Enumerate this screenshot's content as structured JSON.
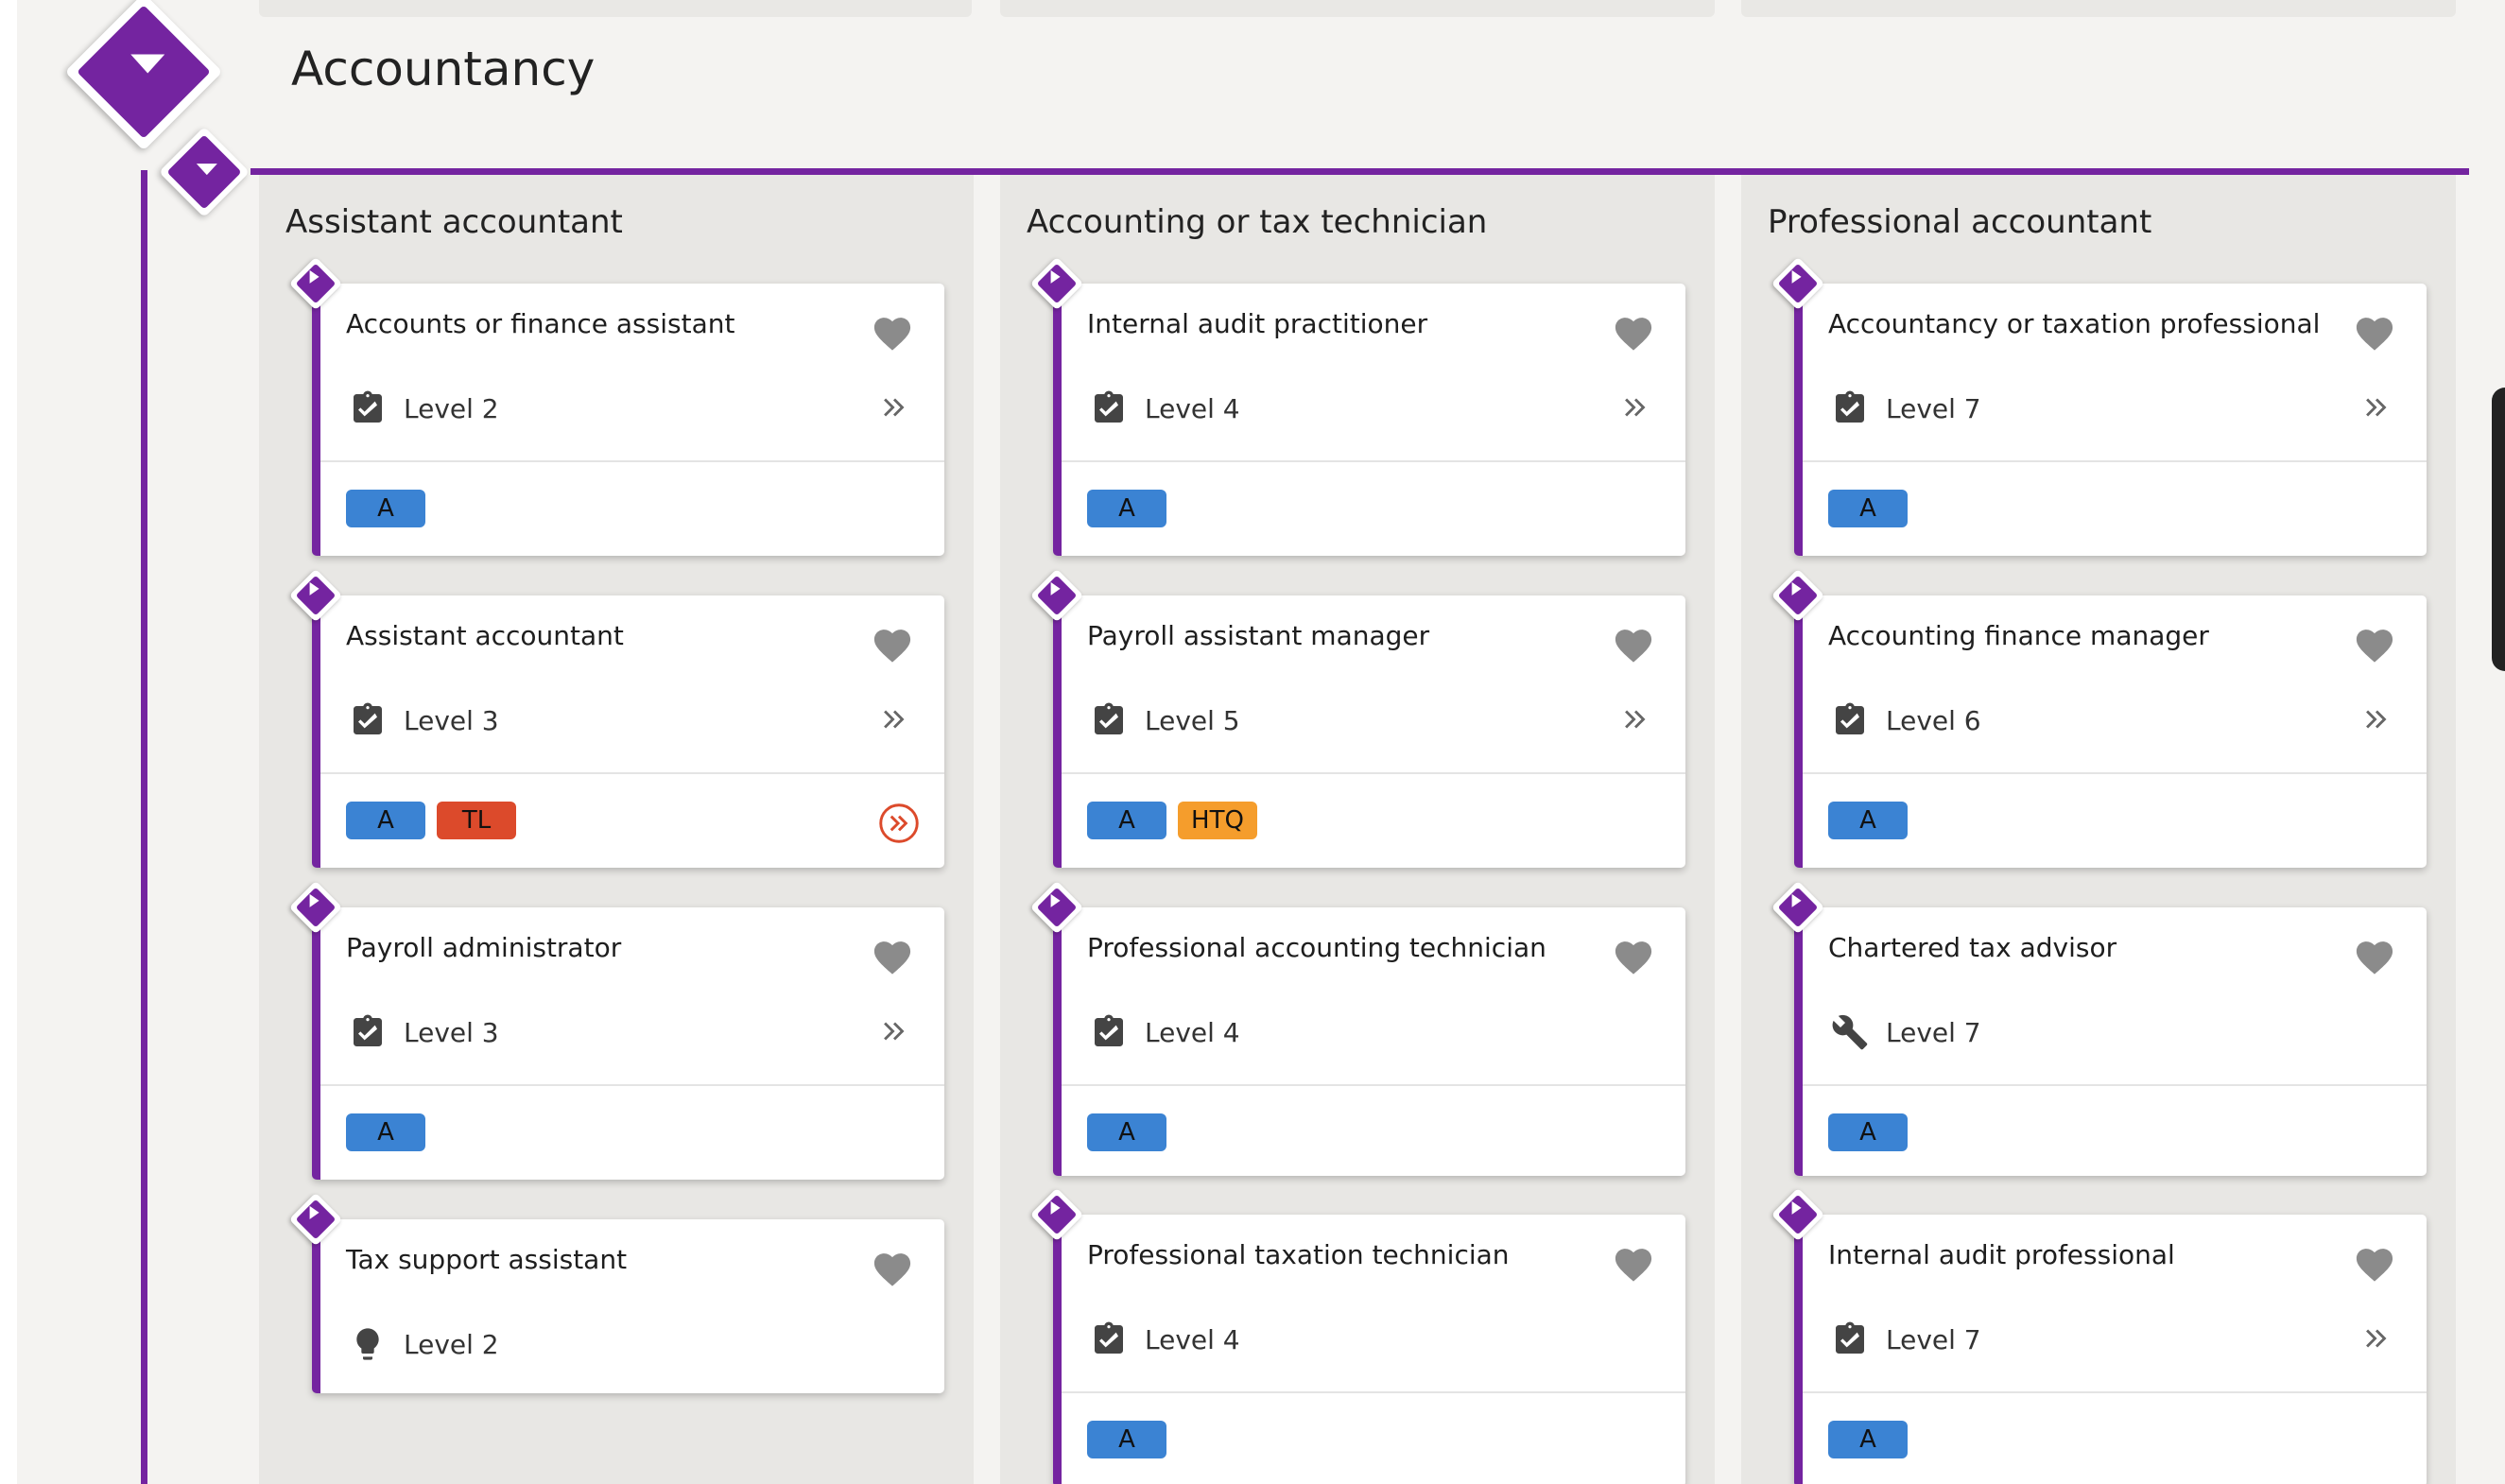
{
  "page": {
    "title": "Accountancy"
  },
  "colors": {
    "accent": "#7424a0",
    "tag_a": "#3b83d3",
    "tag_tl": "#dc4a2b",
    "tag_htq": "#f59d2c"
  },
  "columns": [
    {
      "title": "Assistant accountant",
      "cards": [
        {
          "title": "Accounts or finance assistant",
          "level": "Level 2",
          "icon": "clipboard-check-icon",
          "tags": [
            "A"
          ],
          "has_more": true,
          "circle_more": false
        },
        {
          "title": "Assistant accountant",
          "level": "Level 3",
          "icon": "clipboard-check-icon",
          "tags": [
            "A",
            "TL"
          ],
          "has_more": true,
          "circle_more": true
        },
        {
          "title": "Payroll administrator",
          "level": "Level 3",
          "icon": "clipboard-check-icon",
          "tags": [
            "A"
          ],
          "has_more": true,
          "circle_more": false
        },
        {
          "title": "Tax support assistant",
          "level": "Level 2",
          "icon": "lightbulb-icon",
          "tags": [],
          "has_more": false,
          "circle_more": false
        }
      ]
    },
    {
      "title": "Accounting or tax technician",
      "cards": [
        {
          "title": "Internal audit practitioner",
          "level": "Level 4",
          "icon": "clipboard-check-icon",
          "tags": [
            "A"
          ],
          "has_more": true,
          "circle_more": false
        },
        {
          "title": "Payroll assistant manager",
          "level": "Level 5",
          "icon": "clipboard-check-icon",
          "tags": [
            "A",
            "HTQ"
          ],
          "has_more": true,
          "circle_more": false
        },
        {
          "title": "Professional accounting technician",
          "level": "Level 4",
          "icon": "clipboard-check-icon",
          "tags": [
            "A"
          ],
          "has_more": false,
          "circle_more": false
        },
        {
          "title": "Professional taxation technician",
          "level": "Level 4",
          "icon": "clipboard-check-icon",
          "tags": [
            "A"
          ],
          "has_more": false,
          "circle_more": false
        }
      ]
    },
    {
      "title": "Professional accountant",
      "cards": [
        {
          "title": "Accountancy or taxation professional",
          "level": "Level 7",
          "icon": "clipboard-check-icon",
          "tags": [
            "A"
          ],
          "has_more": true,
          "circle_more": false
        },
        {
          "title": "Accounting finance manager",
          "level": "Level 6",
          "icon": "clipboard-check-icon",
          "tags": [
            "A"
          ],
          "has_more": true,
          "circle_more": false
        },
        {
          "title": "Chartered tax advisor",
          "level": "Level 7",
          "icon": "wrench-icon",
          "tags": [
            "A"
          ],
          "has_more": false,
          "circle_more": false
        },
        {
          "title": "Internal audit professional",
          "level": "Level 7",
          "icon": "clipboard-check-icon",
          "tags": [
            "A"
          ],
          "has_more": true,
          "circle_more": false
        }
      ]
    }
  ]
}
